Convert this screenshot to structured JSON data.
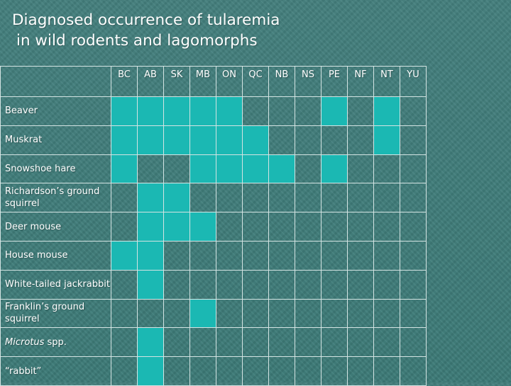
{
  "title_line1": "Diagnosed occurrence of tularemia",
  "title_line2": "in wild rodents and lagomorphs",
  "columns": [
    "BC",
    "AB",
    "SK",
    "MB",
    "ON",
    "QC",
    "NB",
    "NS",
    "PE",
    "NF",
    "NT",
    "YU"
  ],
  "colors": {
    "background": "#3f7f7c",
    "filled": "#1bb8b3",
    "grid": "#d4e4e3"
  },
  "rows": [
    {
      "label": "Beaver",
      "italic": false,
      "cells": [
        1,
        1,
        1,
        1,
        1,
        0,
        0,
        0,
        1,
        0,
        1,
        0
      ]
    },
    {
      "label": "Muskrat",
      "italic": false,
      "cells": [
        1,
        1,
        1,
        1,
        1,
        1,
        0,
        0,
        0,
        0,
        1,
        0
      ]
    },
    {
      "label": "Snowshoe hare",
      "italic": false,
      "cells": [
        1,
        0,
        0,
        1,
        1,
        1,
        1,
        0,
        1,
        0,
        0,
        0
      ]
    },
    {
      "label": "Richardson’s ground squirrel",
      "italic": false,
      "cells": [
        0,
        1,
        1,
        0,
        0,
        0,
        0,
        0,
        0,
        0,
        0,
        0
      ]
    },
    {
      "label": "Deer mouse",
      "italic": false,
      "cells": [
        0,
        1,
        1,
        1,
        0,
        0,
        0,
        0,
        0,
        0,
        0,
        0
      ]
    },
    {
      "label": "House mouse",
      "italic": false,
      "cells": [
        1,
        1,
        0,
        0,
        0,
        0,
        0,
        0,
        0,
        0,
        0,
        0
      ]
    },
    {
      "label": "White-tailed jackrabbit",
      "italic": false,
      "cells": [
        0,
        1,
        0,
        0,
        0,
        0,
        0,
        0,
        0,
        0,
        0,
        0
      ]
    },
    {
      "label": "Franklin’s ground squirrel",
      "italic": false,
      "cells": [
        0,
        0,
        0,
        1,
        0,
        0,
        0,
        0,
        0,
        0,
        0,
        0
      ]
    },
    {
      "label": "Microtus",
      "label_suffix": " spp.",
      "italic": true,
      "cells": [
        0,
        1,
        0,
        0,
        0,
        0,
        0,
        0,
        0,
        0,
        0,
        0
      ]
    },
    {
      "label": "“rabbit”",
      "italic": false,
      "cells": [
        0,
        1,
        0,
        0,
        0,
        0,
        0,
        0,
        0,
        0,
        0,
        0
      ]
    }
  ]
}
